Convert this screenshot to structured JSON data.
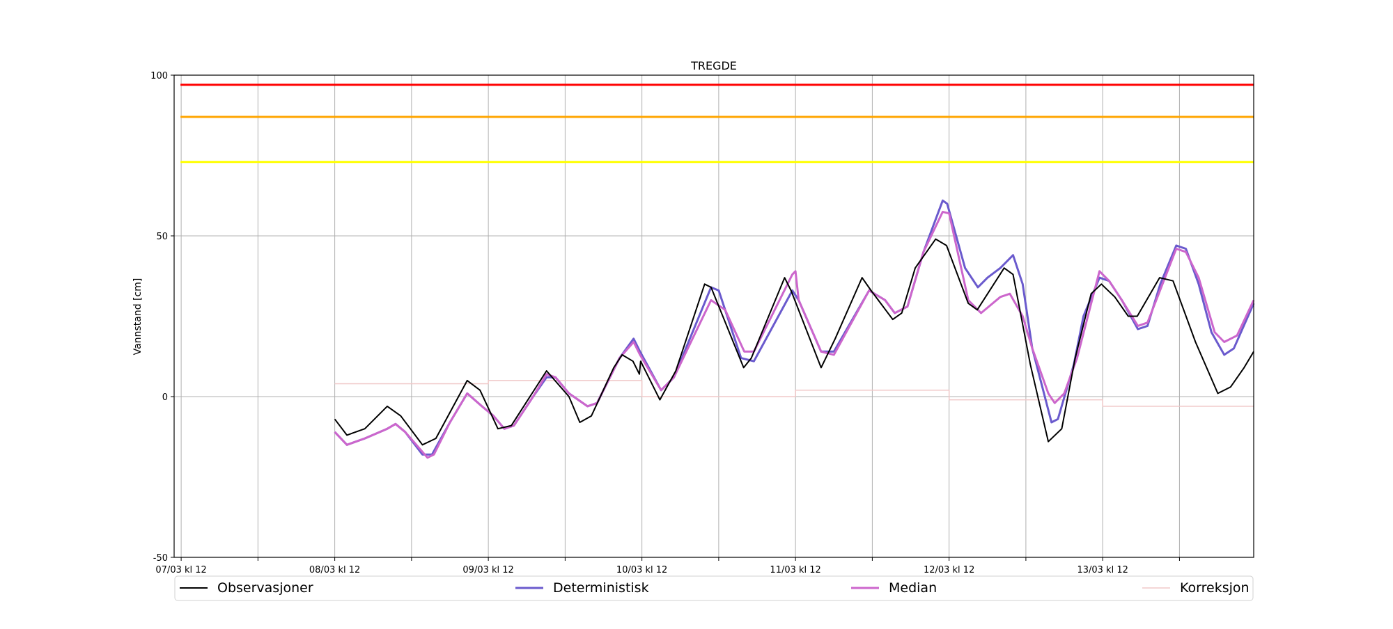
{
  "chart_data": {
    "type": "line",
    "title": "TREGDE",
    "xlabel": "",
    "ylabel": "Vannstand [cm]",
    "x_units": "hours since 08/03 kl 12",
    "xlim": [
      -25.1,
      143.6
    ],
    "ylim": [
      -50,
      100
    ],
    "yticks": [
      -50,
      0,
      50,
      100
    ],
    "xticks": [
      {
        "h": -24,
        "label": "07/03 kl 12"
      },
      {
        "h": 0,
        "label": "08/03 kl 12"
      },
      {
        "h": 24,
        "label": "09/03 kl 12"
      },
      {
        "h": 48,
        "label": "10/03 kl 12"
      },
      {
        "h": 72,
        "label": "11/03 kl 12"
      },
      {
        "h": 96,
        "label": "12/03 kl 12"
      },
      {
        "h": 120,
        "label": "13/03 kl 12"
      }
    ],
    "minor_xticks": [
      -12,
      12,
      36,
      60,
      84,
      108,
      132
    ],
    "grid": true,
    "thresholds": [
      {
        "value": 97,
        "color": "#ff0000"
      },
      {
        "value": 87,
        "color": "#ffa500"
      },
      {
        "value": 73,
        "color": "#ffff00"
      }
    ],
    "legend_position": "bottom",
    "series": [
      {
        "name": "Observasjoner",
        "color": "#000000",
        "width": 2,
        "points": [
          [
            0,
            -7
          ],
          [
            1.9,
            -12
          ],
          [
            4.7,
            -10
          ],
          [
            8.2,
            -3
          ],
          [
            10.3,
            -6
          ],
          [
            13.7,
            -15
          ],
          [
            15.8,
            -13
          ],
          [
            20.7,
            5
          ],
          [
            22.7,
            2
          ],
          [
            25.5,
            -10
          ],
          [
            27.6,
            -9
          ],
          [
            33.1,
            8
          ],
          [
            36.6,
            0
          ],
          [
            38.3,
            -8
          ],
          [
            40.1,
            -6
          ],
          [
            43.6,
            9
          ],
          [
            44.9,
            13
          ],
          [
            46.6,
            11
          ],
          [
            47.6,
            7
          ],
          [
            47.8,
            11
          ],
          [
            50.8,
            -1
          ],
          [
            53.3,
            8
          ],
          [
            57.8,
            35
          ],
          [
            58.8,
            34
          ],
          [
            63.9,
            9
          ],
          [
            65.1,
            12
          ],
          [
            70.3,
            37
          ],
          [
            71.3,
            33
          ],
          [
            76.0,
            9
          ],
          [
            78.2,
            18
          ],
          [
            82.4,
            37
          ],
          [
            83.8,
            33
          ],
          [
            87.2,
            24
          ],
          [
            88.6,
            26
          ],
          [
            90.7,
            40
          ],
          [
            93.9,
            49
          ],
          [
            95.6,
            47
          ],
          [
            99.0,
            29
          ],
          [
            100.4,
            27
          ],
          [
            104.6,
            40
          ],
          [
            106.0,
            38
          ],
          [
            108.7,
            10
          ],
          [
            111.5,
            -14
          ],
          [
            113.6,
            -10
          ],
          [
            115.7,
            12
          ],
          [
            118.2,
            32
          ],
          [
            119.8,
            35
          ],
          [
            121.9,
            31
          ],
          [
            124.0,
            25
          ],
          [
            125.4,
            25
          ],
          [
            128.9,
            37
          ],
          [
            131.0,
            36
          ],
          [
            134.5,
            17
          ],
          [
            138.0,
            1
          ],
          [
            140.0,
            3
          ],
          [
            142.1,
            9
          ],
          [
            143.6,
            14
          ]
        ]
      },
      {
        "name": "Deterministisk",
        "color": "#6a5acd",
        "width": 3,
        "points": [
          [
            0,
            -11
          ],
          [
            1.9,
            -15
          ],
          [
            4.7,
            -13
          ],
          [
            8.2,
            -10
          ],
          [
            9.5,
            -8.5
          ],
          [
            11,
            -11
          ],
          [
            13.7,
            -18
          ],
          [
            15.2,
            -18
          ],
          [
            18,
            -8
          ],
          [
            20.7,
            1
          ],
          [
            23,
            -3
          ],
          [
            24.8,
            -6
          ],
          [
            26.5,
            -10
          ],
          [
            28,
            -9
          ],
          [
            31,
            0
          ],
          [
            33.1,
            6
          ],
          [
            34.5,
            6
          ],
          [
            36.6,
            1
          ],
          [
            39.5,
            -3
          ],
          [
            41,
            -2
          ],
          [
            44.5,
            12
          ],
          [
            46.7,
            18
          ],
          [
            47.7,
            14
          ],
          [
            51,
            2
          ],
          [
            53,
            6
          ],
          [
            58.8,
            34
          ],
          [
            60,
            33
          ],
          [
            63.5,
            12
          ],
          [
            65.5,
            11
          ],
          [
            71.5,
            33
          ],
          [
            72.5,
            30
          ],
          [
            76,
            14
          ],
          [
            78,
            14
          ],
          [
            83.5,
            33
          ],
          [
            86,
            30
          ],
          [
            87.5,
            26
          ],
          [
            89.5,
            28
          ],
          [
            92,
            45
          ],
          [
            95,
            61
          ],
          [
            95.7,
            60
          ],
          [
            98.5,
            40
          ],
          [
            100.5,
            34
          ],
          [
            102,
            37
          ],
          [
            104,
            40
          ],
          [
            106,
            44
          ],
          [
            107.5,
            35
          ],
          [
            109,
            15
          ],
          [
            112,
            -8
          ],
          [
            113,
            -7
          ],
          [
            115.5,
            10
          ],
          [
            117,
            25
          ],
          [
            119.5,
            37
          ],
          [
            121,
            36
          ],
          [
            123,
            30
          ],
          [
            125.5,
            21
          ],
          [
            127,
            22
          ],
          [
            129,
            35
          ],
          [
            131.5,
            47
          ],
          [
            133,
            46
          ],
          [
            135,
            35
          ],
          [
            137,
            20
          ],
          [
            139,
            13
          ],
          [
            140.5,
            15
          ],
          [
            143.6,
            29
          ]
        ]
      },
      {
        "name": "Median",
        "color": "#cc66cc",
        "width": 3,
        "points": [
          [
            0,
            -11
          ],
          [
            1.9,
            -15
          ],
          [
            4.7,
            -13
          ],
          [
            8.2,
            -10
          ],
          [
            9.5,
            -8.5
          ],
          [
            11,
            -11
          ],
          [
            14.5,
            -19
          ],
          [
            15.5,
            -18
          ],
          [
            18,
            -8
          ],
          [
            20.7,
            1
          ],
          [
            23,
            -3
          ],
          [
            24.8,
            -6
          ],
          [
            26.5,
            -10
          ],
          [
            28,
            -9
          ],
          [
            31,
            0
          ],
          [
            33.1,
            7
          ],
          [
            34.5,
            6
          ],
          [
            36.6,
            1
          ],
          [
            39.5,
            -3
          ],
          [
            41,
            -2
          ],
          [
            44.5,
            12
          ],
          [
            46.7,
            17
          ],
          [
            47.7,
            13
          ],
          [
            51,
            2
          ],
          [
            53,
            6
          ],
          [
            58.8,
            30
          ],
          [
            61,
            27
          ],
          [
            64,
            14
          ],
          [
            65.5,
            14
          ],
          [
            71.5,
            38
          ],
          [
            72,
            39
          ],
          [
            72.5,
            30
          ],
          [
            76,
            14
          ],
          [
            78,
            13
          ],
          [
            83.5,
            33
          ],
          [
            86,
            30
          ],
          [
            87.5,
            26
          ],
          [
            89.5,
            28
          ],
          [
            92,
            45
          ],
          [
            95,
            57.5
          ],
          [
            96,
            57
          ],
          [
            99,
            30
          ],
          [
            101,
            26
          ],
          [
            104,
            31
          ],
          [
            105.5,
            32
          ],
          [
            107.5,
            25
          ],
          [
            109,
            15
          ],
          [
            111.5,
            1
          ],
          [
            112.5,
            -2
          ],
          [
            114,
            1
          ],
          [
            116,
            12
          ],
          [
            119.5,
            39
          ],
          [
            121,
            36
          ],
          [
            123,
            30
          ],
          [
            125.5,
            22
          ],
          [
            127,
            23
          ],
          [
            131.5,
            46
          ],
          [
            133,
            45
          ],
          [
            135,
            37
          ],
          [
            137.5,
            20
          ],
          [
            139,
            17
          ],
          [
            141,
            19
          ],
          [
            143.6,
            30
          ]
        ]
      },
      {
        "name": "Korreksjon",
        "color": "#f0c8c8",
        "width": 1.5,
        "step": true,
        "points": [
          [
            0,
            4
          ],
          [
            24,
            4
          ],
          [
            24,
            5
          ],
          [
            48,
            5
          ],
          [
            48,
            0
          ],
          [
            72,
            0
          ],
          [
            72,
            2
          ],
          [
            96,
            2
          ],
          [
            96,
            -1
          ],
          [
            120,
            -1
          ],
          [
            120,
            -3
          ],
          [
            143.6,
            -3
          ]
        ]
      }
    ]
  }
}
